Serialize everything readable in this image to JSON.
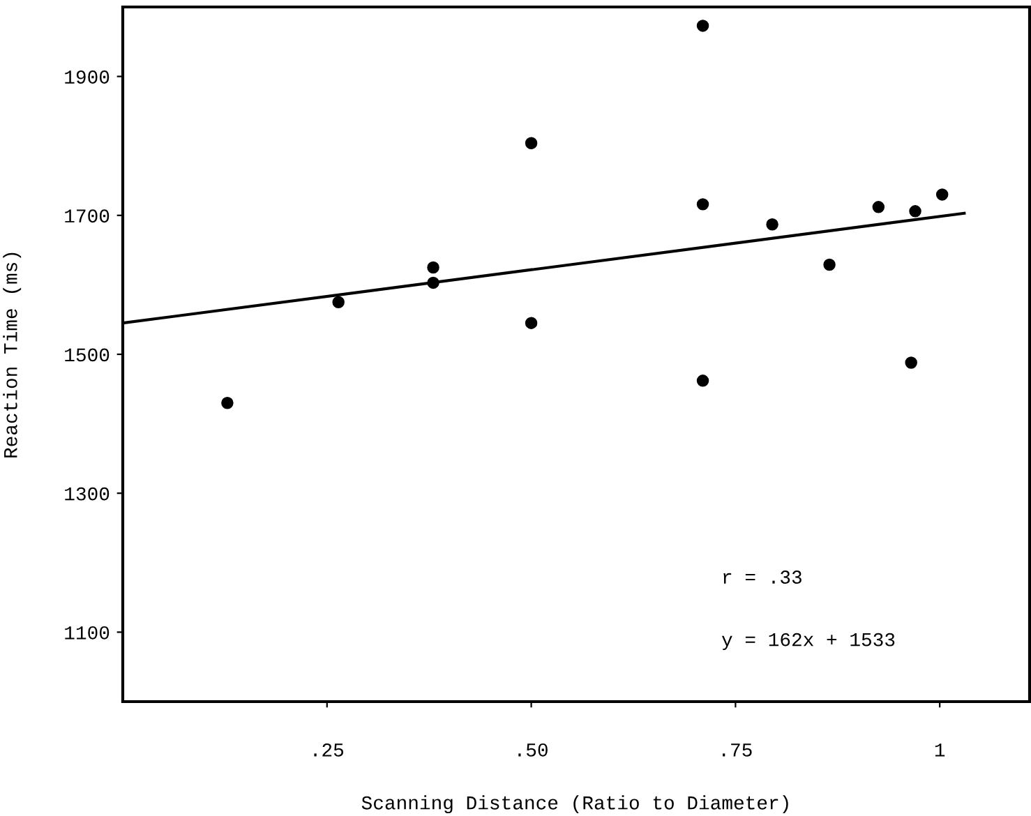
{
  "chart_data": {
    "type": "scatter",
    "xlabel": "Scanning Distance (Ratio to Diameter)",
    "ylabel": "Reaction Time (ms)",
    "xlim": [
      0,
      1.11
    ],
    "xticks": [
      {
        "value": 0.25,
        "label": ".25"
      },
      {
        "value": 0.5,
        "label": ".50"
      },
      {
        "value": 0.75,
        "label": ".75"
      },
      {
        "value": 1,
        "label": "1"
      }
    ],
    "ylim": [
      1000,
      2000
    ],
    "yticks": [
      1100,
      1300,
      1500,
      1700,
      1900
    ],
    "marker": "circle",
    "grid": false,
    "legend": false,
    "series": [
      {
        "color": "#000000",
        "x": [
          0.128,
          0.264,
          0.38,
          0.38,
          0.5,
          0.5,
          0.71,
          0.71,
          0.71,
          0.795,
          0.865,
          0.925,
          0.97,
          0.965,
          1.003
        ],
        "values": [
          1430,
          1575,
          1625,
          1603,
          1804,
          1545,
          1973,
          1716,
          1462,
          1687,
          1629,
          1712,
          1706,
          1488,
          1730
        ]
      },
      {
        "type": "line",
        "color": "#000000",
        "x": [
          0,
          1.03
        ],
        "values": [
          1545,
          1703
        ],
        "marker": "none",
        "line_style": "solid"
      }
    ],
    "annotations": [
      "r = .33",
      "y = 162x + 1533"
    ]
  }
}
